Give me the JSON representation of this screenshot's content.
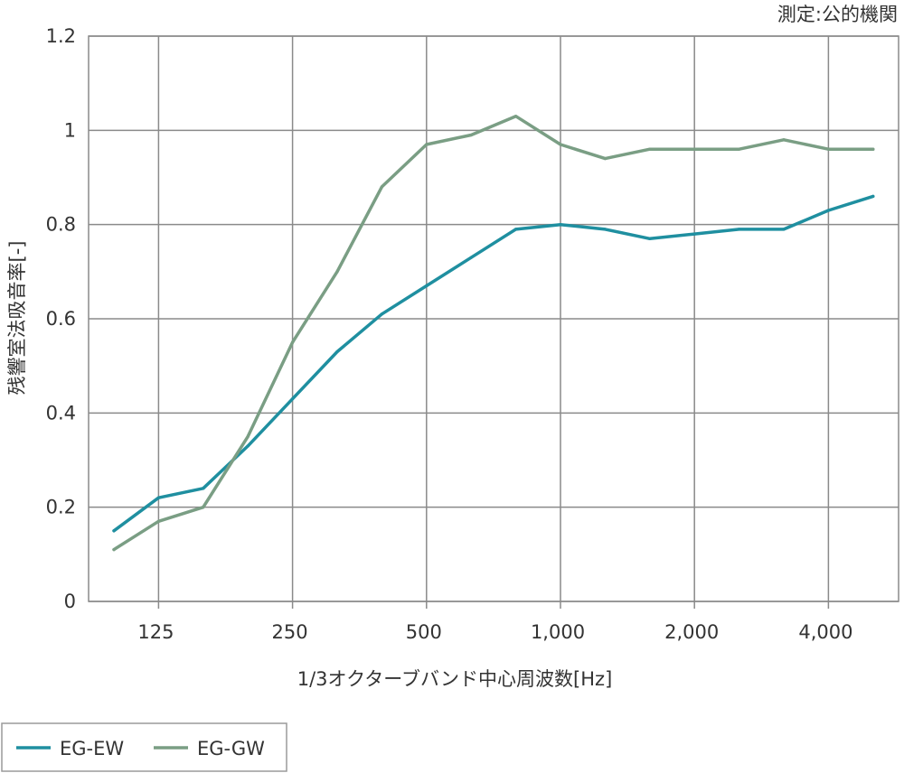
{
  "source_note": "測定:公的機関",
  "chart_data": {
    "type": "line",
    "title": "",
    "xlabel": "1/3オクターブバンド中心周波数[Hz]",
    "ylabel": "残響室法吸音率[-]",
    "x": [
      100,
      125,
      160,
      200,
      250,
      315,
      400,
      500,
      630,
      800,
      1000,
      1250,
      1600,
      2000,
      2500,
      3150,
      4000,
      5000
    ],
    "x_tick_values": [
      125,
      250,
      500,
      1000,
      2000,
      4000
    ],
    "x_tick_labels": [
      "125",
      "250",
      "500",
      "1,000",
      "2,000",
      "4,000"
    ],
    "x_scale": "log",
    "y_ticks": [
      0,
      0.2,
      0.4,
      0.6,
      0.8,
      1,
      1.2
    ],
    "y_tick_labels": [
      "0",
      "0.2",
      "0.4",
      "0.6",
      "0.8",
      "1",
      "1.2"
    ],
    "ylim": [
      0,
      1.2
    ],
    "grid": true,
    "legend_position": "bottom-left",
    "series": [
      {
        "name": "EG-EW",
        "color": "#1f8fa0",
        "values": [
          0.15,
          0.22,
          0.24,
          0.33,
          0.43,
          0.53,
          0.61,
          0.67,
          0.73,
          0.79,
          0.8,
          0.79,
          0.77,
          0.78,
          0.79,
          0.79,
          0.83,
          0.86
        ]
      },
      {
        "name": "EG-GW",
        "color": "#7a9e84",
        "values": [
          0.11,
          0.17,
          0.2,
          0.35,
          0.55,
          0.7,
          0.88,
          0.97,
          0.99,
          1.03,
          0.97,
          0.94,
          0.96,
          0.96,
          0.96,
          0.98,
          0.96,
          0.96
        ]
      }
    ]
  }
}
